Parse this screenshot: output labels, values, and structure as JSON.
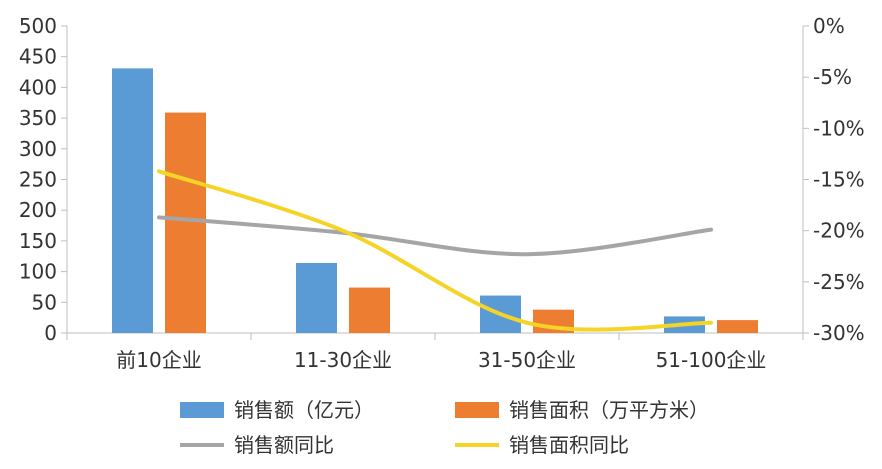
{
  "chart_data": {
    "type": "bar",
    "categories": [
      "前10企业",
      "11-30企业",
      "31-50企业",
      "51-100企业"
    ],
    "series": [
      {
        "name": "销售额（亿元）",
        "type": "bar",
        "axis": "left",
        "color": "#5B9BD5",
        "values": [
          431,
          114,
          61,
          27
        ]
      },
      {
        "name": "销售面积（万平方米）",
        "type": "bar",
        "axis": "left",
        "color": "#ED7D31",
        "values": [
          359,
          74,
          38,
          21
        ]
      },
      {
        "name": "销售额同比",
        "type": "line",
        "axis": "right",
        "color": "#A5A5A5",
        "smooth": true,
        "values": [
          -18.7,
          -20.2,
          -22.3,
          -19.9
        ]
      },
      {
        "name": "销售面积同比",
        "type": "line",
        "axis": "right",
        "color": "#F5D327",
        "smooth": true,
        "values": [
          -14.2,
          -20.0,
          -29.0,
          -29.0
        ]
      }
    ],
    "left_axis": {
      "min": 0,
      "max": 500,
      "ticks": [
        0,
        50,
        100,
        150,
        200,
        250,
        300,
        350,
        400,
        450,
        500
      ],
      "tick_labels": [
        "0",
        "50",
        "100",
        "150",
        "200",
        "250",
        "300",
        "350",
        "400",
        "450",
        "500"
      ]
    },
    "right_axis": {
      "min": -30,
      "max": 0,
      "ticks": [
        0,
        -5,
        -10,
        -15,
        -20,
        -25,
        -30
      ],
      "tick_labels": [
        "0%",
        "-5%",
        "-10%",
        "-15%",
        "-20%",
        "-25%",
        "-30%"
      ]
    },
    "title": "",
    "xlabel": "",
    "ylabel": "",
    "grid": false,
    "legend_position": "bottom"
  }
}
